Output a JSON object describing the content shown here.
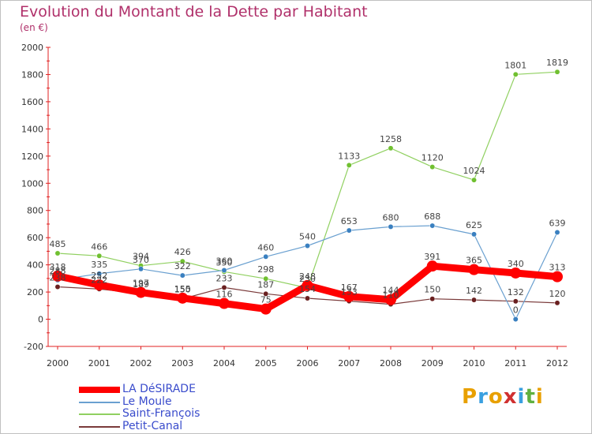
{
  "header": {
    "title": "Evolution du Montant de la Dette par Habitant",
    "subtitle": "(en €)"
  },
  "logo": {
    "text": "Proxiti",
    "letters": [
      {
        "ch": "P",
        "color": "#e8a000"
      },
      {
        "ch": "r",
        "color": "#3aa0e0"
      },
      {
        "ch": "o",
        "color": "#e8a000"
      },
      {
        "ch": "x",
        "color": "#d03030"
      },
      {
        "ch": "i",
        "color": "#3aa0e0"
      },
      {
        "ch": "t",
        "color": "#60b040"
      },
      {
        "ch": "i",
        "color": "#e8a000"
      }
    ]
  },
  "chart_data": {
    "type": "line",
    "title": "Evolution du Montant de la Dette par Habitant",
    "subtitle": "(en €)",
    "xlabel": "",
    "ylabel": "",
    "x": [
      "2000",
      "2001",
      "2002",
      "2003",
      "2004",
      "2005",
      "2006",
      "2007",
      "2008",
      "2009",
      "2010",
      "2011",
      "2012"
    ],
    "ylim": [
      -200,
      2000
    ],
    "yticks": [
      -200,
      0,
      200,
      400,
      600,
      800,
      1000,
      1200,
      1400,
      1600,
      1800,
      2000
    ],
    "grid": false,
    "legend_position": "bottom-left",
    "series": [
      {
        "name": "Petit-Canal",
        "color": "#7a3a3a",
        "marker_color": "#6a2020",
        "values": [
          238,
          222,
          189,
          150,
          233,
          187,
          154,
          133,
          110,
          150,
          142,
          132,
          120
        ],
        "labels": [
          "238",
          "222",
          "189",
          "150",
          "233",
          "187",
          "154",
          "133",
          "110",
          "150",
          "142",
          "132",
          "120"
        ]
      },
      {
        "name": "Saint-François",
        "color": "#90d060",
        "marker_color": "#70c030",
        "values": [
          485,
          466,
          394,
          426,
          350,
          298,
          230,
          1133,
          1258,
          1120,
          1024,
          1801,
          1819
        ],
        "labels": [
          "485",
          "466",
          "394",
          "426",
          "350",
          "298",
          "230",
          "1133",
          "1258",
          "1120",
          "1024",
          "1801",
          "1819"
        ]
      },
      {
        "name": "Le Moule",
        "color": "#6aa0d0",
        "marker_color": "#3a80c0",
        "values": [
          288,
          335,
          370,
          322,
          360,
          460,
          540,
          653,
          680,
          688,
          625,
          0,
          639
        ],
        "labels": [
          "288",
          "335",
          "370",
          "322",
          "360",
          "460",
          "540",
          "653",
          "680",
          "688",
          "625",
          "0",
          "639"
        ]
      },
      {
        "name": "LA DéSIRADE",
        "color": "#ff0000",
        "marker_color": "#ff0000",
        "values": [
          318,
          252,
          197,
          155,
          116,
          75,
          248,
          167,
          144,
          391,
          365,
          340,
          313
        ],
        "labels": [
          "318",
          "252",
          "197",
          "155",
          "116",
          "75",
          "248",
          "167",
          "144",
          "391",
          "365",
          "340",
          "313"
        ]
      }
    ]
  }
}
